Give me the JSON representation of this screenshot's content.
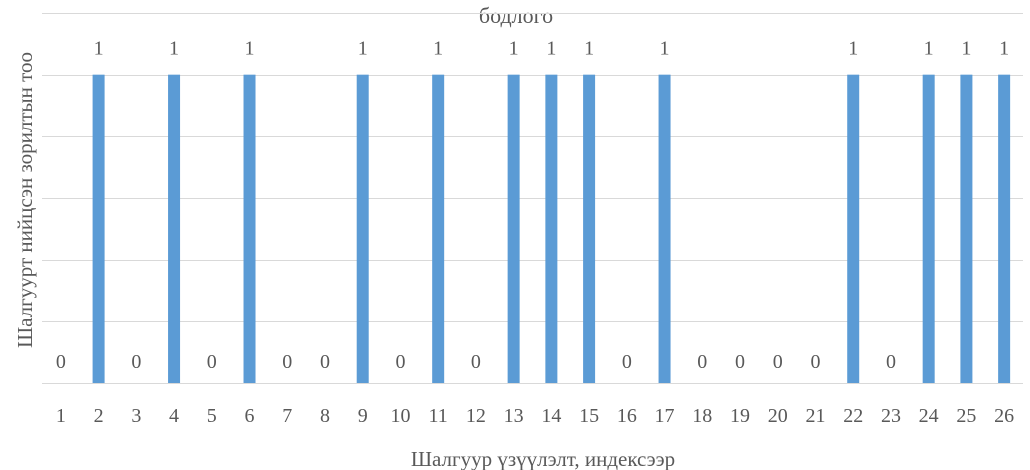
{
  "chart_data": {
    "type": "bar",
    "title": "бодлого",
    "xlabel": "Шалгуур үзүүлэлт, индексээр",
    "ylabel": "Шалгуурт нийцсэн зорилтын тоо",
    "categories": [
      "1",
      "2",
      "3",
      "4",
      "5",
      "6",
      "7",
      "8",
      "9",
      "10",
      "11",
      "12",
      "13",
      "14",
      "15",
      "16",
      "17",
      "18",
      "19",
      "20",
      "21",
      "22",
      "23",
      "24",
      "25",
      "26"
    ],
    "values": [
      0,
      1,
      0,
      1,
      0,
      1,
      0,
      0,
      1,
      0,
      1,
      0,
      1,
      1,
      1,
      0,
      1,
      0,
      0,
      0,
      0,
      1,
      0,
      1,
      1,
      1
    ],
    "ylim": [
      0,
      1.2
    ],
    "grid": true,
    "data_labels": true,
    "bar_color": "#5b9bd5"
  }
}
